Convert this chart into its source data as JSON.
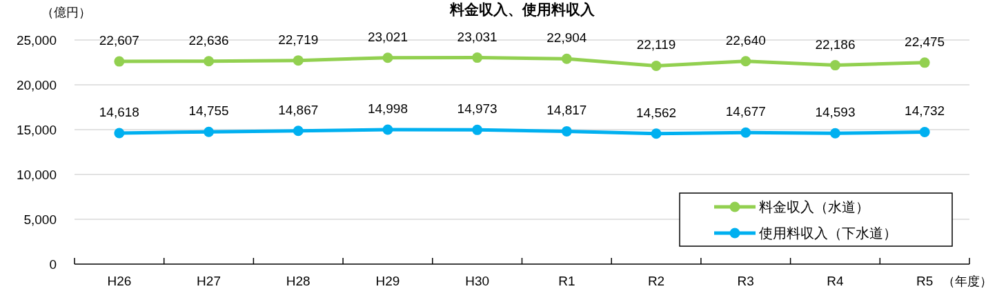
{
  "chart_data": {
    "type": "line",
    "title": "料金収入、使用料収入",
    "ylabel": "（億円）",
    "xlabel": "（年度）",
    "categories": [
      "H26",
      "H27",
      "H28",
      "H29",
      "H30",
      "R1",
      "R2",
      "R3",
      "R4",
      "R5"
    ],
    "series": [
      {
        "name": "料金収入（水道）",
        "color": "#92d050",
        "values": [
          22607,
          22636,
          22719,
          23021,
          23031,
          22904,
          22119,
          22640,
          22186,
          22475
        ],
        "value_labels": [
          "22,607",
          "22,636",
          "22,719",
          "23,021",
          "23,031",
          "22,904",
          "22,119",
          "22,640",
          "22,186",
          "22,475"
        ]
      },
      {
        "name": "使用料収入（下水道）",
        "color": "#00b0f0",
        "values": [
          14618,
          14755,
          14867,
          14998,
          14973,
          14817,
          14562,
          14677,
          14593,
          14732
        ],
        "value_labels": [
          "14,618",
          "14,755",
          "14,867",
          "14,998",
          "14,973",
          "14,817",
          "14,562",
          "14,677",
          "14,593",
          "14,732"
        ]
      }
    ],
    "ylim": [
      0,
      25000
    ],
    "yticks": [
      {
        "value": 0,
        "label": "0"
      },
      {
        "value": 5000,
        "label": "5,000"
      },
      {
        "value": 10000,
        "label": "10,000"
      },
      {
        "value": 15000,
        "label": "15,000"
      },
      {
        "value": 20000,
        "label": "20,000"
      },
      {
        "value": 25000,
        "label": "25,000"
      }
    ],
    "grid": "y",
    "legend": "bottom right",
    "marker": "circle"
  }
}
